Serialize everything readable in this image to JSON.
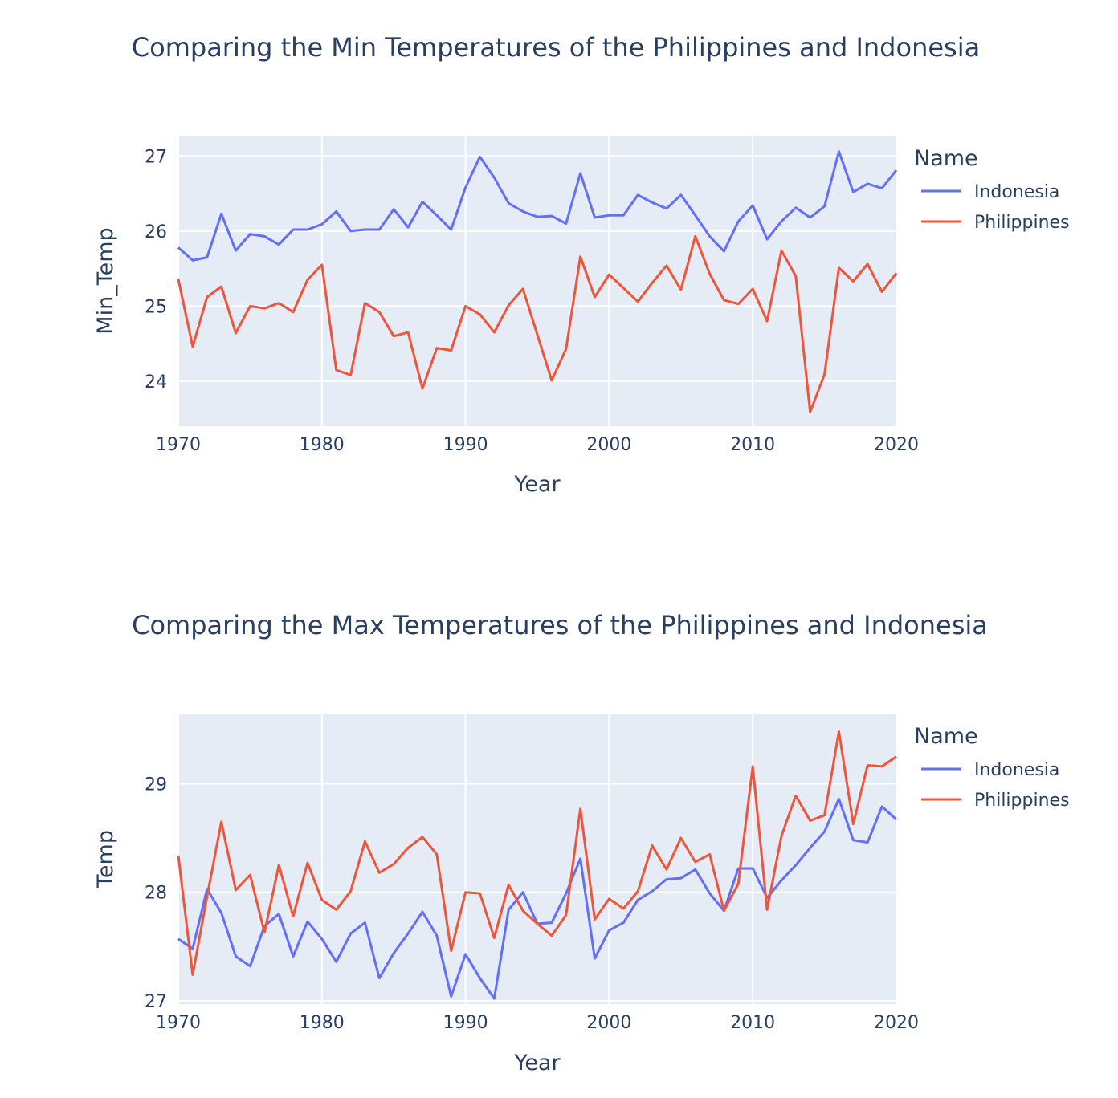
{
  "chart_data": [
    {
      "type": "line",
      "title": "Comparing the Min Temperatures of the Philippines and Indonesia",
      "xlabel": "Year",
      "ylabel": "Min_Temp",
      "xlim": [
        1970,
        2020
      ],
      "ylim": [
        23.4,
        27.26
      ],
      "x_ticks": [
        1970,
        1980,
        1990,
        2000,
        2010,
        2020
      ],
      "y_ticks": [
        24,
        25,
        26,
        27
      ],
      "legend_title": "Name",
      "legend_position": "right",
      "grid": true,
      "x": [
        1970,
        1971,
        1972,
        1973,
        1974,
        1975,
        1976,
        1977,
        1978,
        1979,
        1980,
        1981,
        1982,
        1983,
        1984,
        1985,
        1986,
        1987,
        1988,
        1989,
        1990,
        1991,
        1992,
        1993,
        1994,
        1995,
        1996,
        1997,
        1998,
        1999,
        2000,
        2001,
        2002,
        2003,
        2004,
        2005,
        2006,
        2007,
        2008,
        2009,
        2010,
        2011,
        2012,
        2013,
        2014,
        2015,
        2016,
        2017,
        2018,
        2019,
        2020
      ],
      "series": [
        {
          "name": "Indonesia",
          "color": "#636efa",
          "values": [
            25.78,
            25.61,
            25.65,
            26.23,
            25.74,
            25.96,
            25.93,
            25.82,
            26.02,
            26.02,
            26.09,
            26.26,
            26.0,
            26.02,
            26.02,
            26.29,
            26.05,
            26.39,
            26.21,
            26.02,
            26.58,
            26.99,
            26.71,
            26.37,
            26.26,
            26.19,
            26.2,
            26.1,
            26.77,
            26.18,
            26.21,
            26.21,
            26.48,
            26.38,
            26.3,
            26.48,
            26.21,
            25.93,
            25.73,
            26.13,
            26.34,
            25.89,
            26.13,
            26.31,
            26.18,
            26.33,
            27.06,
            26.52,
            26.63,
            26.57,
            26.81
          ]
        },
        {
          "name": "Philippines",
          "color": "#ef553b",
          "values": [
            25.36,
            24.46,
            25.12,
            25.26,
            24.64,
            25.0,
            24.97,
            25.04,
            24.92,
            25.35,
            25.55,
            24.15,
            24.08,
            25.04,
            24.92,
            24.6,
            24.65,
            23.9,
            24.44,
            24.41,
            25.0,
            24.89,
            24.65,
            25.01,
            25.23,
            24.62,
            24.01,
            24.43,
            25.66,
            25.12,
            25.42,
            25.24,
            25.06,
            25.31,
            25.54,
            25.22,
            25.93,
            25.43,
            25.08,
            25.03,
            25.23,
            24.8,
            25.74,
            25.4,
            23.59,
            24.09,
            25.51,
            25.33,
            25.56,
            25.19,
            25.44
          ]
        }
      ]
    },
    {
      "type": "line",
      "title": "Comparing the Max Temperatures of the Philippines and Indonesia",
      "xlabel": "Year",
      "ylabel": "Temp",
      "xlim": [
        1970,
        2020
      ],
      "ylim": [
        26.97,
        29.64
      ],
      "x_ticks": [
        1970,
        1980,
        1990,
        2000,
        2010,
        2020
      ],
      "y_ticks": [
        27,
        28,
        29
      ],
      "legend_title": "Name",
      "legend_position": "right",
      "grid": true,
      "x": [
        1970,
        1971,
        1972,
        1973,
        1974,
        1975,
        1976,
        1977,
        1978,
        1979,
        1980,
        1981,
        1982,
        1983,
        1984,
        1985,
        1986,
        1987,
        1988,
        1989,
        1990,
        1991,
        1992,
        1993,
        1994,
        1995,
        1996,
        1997,
        1998,
        1999,
        2000,
        2001,
        2002,
        2003,
        2004,
        2005,
        2006,
        2007,
        2008,
        2009,
        2010,
        2011,
        2012,
        2013,
        2014,
        2015,
        2016,
        2017,
        2018,
        2019,
        2020
      ],
      "series": [
        {
          "name": "Indonesia",
          "color": "#636efa",
          "values": [
            27.57,
            27.48,
            28.03,
            27.81,
            27.41,
            27.32,
            27.69,
            27.8,
            27.41,
            27.73,
            27.57,
            27.36,
            27.62,
            27.72,
            27.21,
            27.44,
            27.62,
            27.82,
            27.6,
            27.04,
            27.43,
            27.21,
            27.02,
            27.84,
            28.0,
            27.71,
            27.72,
            27.99,
            28.31,
            27.39,
            27.65,
            27.72,
            27.93,
            28.01,
            28.12,
            28.13,
            28.21,
            27.99,
            27.83,
            28.22,
            28.22,
            27.95,
            28.11,
            28.25,
            28.41,
            28.56,
            28.86,
            28.48,
            28.46,
            28.79,
            28.67
          ]
        },
        {
          "name": "Philippines",
          "color": "#ef553b",
          "values": [
            28.34,
            27.24,
            27.96,
            28.65,
            28.02,
            28.16,
            27.63,
            28.25,
            27.78,
            28.27,
            27.93,
            27.84,
            28.01,
            28.47,
            28.18,
            28.26,
            28.41,
            28.51,
            28.35,
            27.46,
            28.0,
            27.99,
            27.58,
            28.07,
            27.83,
            27.71,
            27.6,
            27.79,
            28.77,
            27.75,
            27.94,
            27.85,
            28.01,
            28.43,
            28.21,
            28.5,
            28.28,
            28.35,
            27.83,
            28.08,
            29.16,
            27.84,
            28.52,
            28.89,
            28.66,
            28.71,
            29.48,
            28.63,
            29.17,
            29.16,
            29.25
          ]
        }
      ]
    }
  ]
}
